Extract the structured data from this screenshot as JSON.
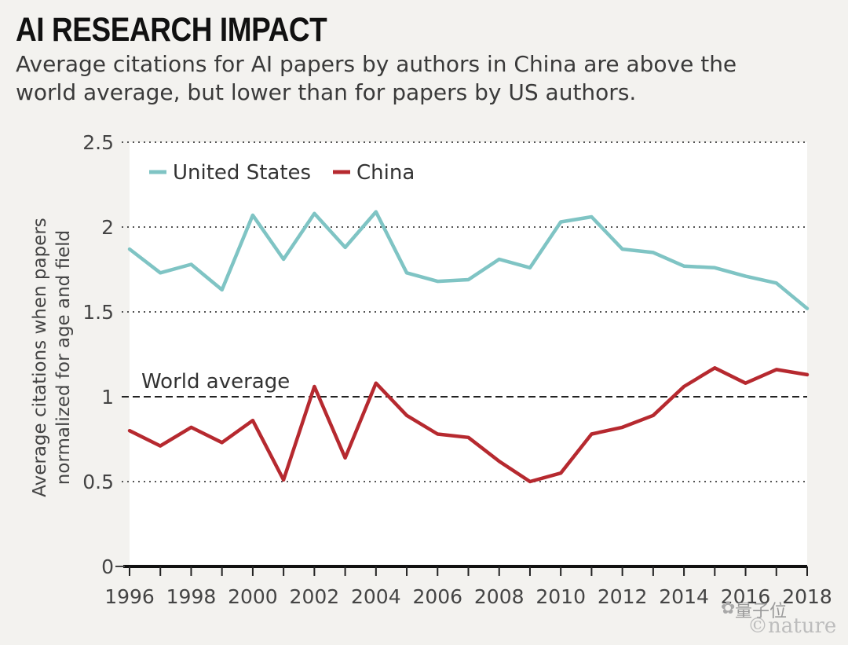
{
  "title": "AI RESEARCH IMPACT",
  "subtitle": "Average citations for AI papers by authors in China are above the world average, but lower than for papers by US authors.",
  "watermark": {
    "text": "量子位",
    "icon": "wechat-icon",
    "credit": "©nature"
  },
  "chart_data": {
    "type": "line",
    "ylabel": "Average citations when papers normalized for age and field",
    "ylim": [
      0,
      2.5
    ],
    "y_ticks": [
      "0",
      "0.5",
      "1",
      "1.5",
      "2",
      "2.5"
    ],
    "x_ticks": [
      "1996",
      "1998",
      "2000",
      "2002",
      "2004",
      "2006",
      "2008",
      "2010",
      "2012",
      "2014",
      "2016",
      "2018"
    ],
    "x": [
      1996,
      1997,
      1998,
      1999,
      2000,
      2001,
      2002,
      2003,
      2004,
      2005,
      2006,
      2007,
      2008,
      2009,
      2010,
      2011,
      2012,
      2013,
      2014,
      2015,
      2016,
      2017,
      2018
    ],
    "grid": "horizontal dotted",
    "legend_position": "top-left",
    "reference_line": {
      "label": "World average",
      "value": 1
    },
    "series": [
      {
        "name": "United States",
        "color": "#7fc4c4",
        "values": [
          1.87,
          1.73,
          1.78,
          1.63,
          2.07,
          1.81,
          2.08,
          1.88,
          2.09,
          1.73,
          1.68,
          1.69,
          1.81,
          1.76,
          2.03,
          2.06,
          1.87,
          1.85,
          1.77,
          1.76,
          1.71,
          1.67,
          1.52
        ]
      },
      {
        "name": "China",
        "color": "#b6292f",
        "values": [
          0.8,
          0.71,
          0.82,
          0.73,
          0.86,
          0.51,
          1.06,
          0.64,
          1.08,
          0.89,
          0.78,
          0.76,
          0.62,
          0.5,
          0.55,
          0.78,
          0.82,
          0.89,
          1.06,
          1.17,
          1.08,
          1.16,
          1.13
        ]
      }
    ]
  }
}
